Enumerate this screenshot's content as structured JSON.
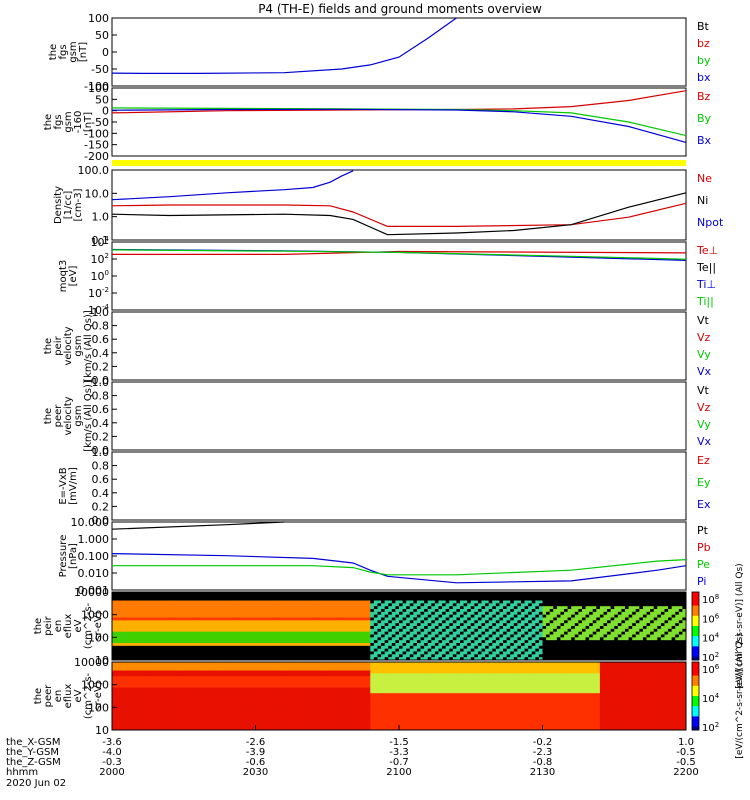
{
  "title": "P4 (TH-E) fields and ground moments overview",
  "colors": {
    "black": "#000000",
    "red": "#d40000",
    "green": "#00c800",
    "blue": "#0000d4",
    "yellow": "#ffff00"
  },
  "chart_data": [
    {
      "type": "line",
      "id": "fgs",
      "ylabel": [
        "the",
        "fgs",
        "gsm",
        "[nT]"
      ],
      "yticks": [
        "100",
        "50",
        "0",
        "-50",
        "-100"
      ],
      "ylim": [
        -100,
        100
      ],
      "legend": [
        {
          "name": "Bt",
          "color": "black"
        },
        {
          "name": "bz",
          "color": "red"
        },
        {
          "name": "by",
          "color": "green"
        },
        {
          "name": "bx",
          "color": "blue"
        }
      ],
      "series": [
        {
          "name": "bx",
          "color": "blue",
          "x": [
            0,
            0.05,
            0.15,
            0.3,
            0.4,
            0.45,
            0.5,
            0.55,
            0.6
          ],
          "y": [
            -62,
            -63,
            -63,
            -61,
            -50,
            -38,
            -15,
            40,
            110
          ]
        }
      ]
    },
    {
      "type": "line",
      "id": "fgs2",
      "ylabel": [
        "the",
        "fgs",
        "gsm",
        "-160",
        "[nT]"
      ],
      "yticks": [
        "100",
        "50",
        "0",
        "-50",
        "-100",
        "-150",
        "-200"
      ],
      "ylim": [
        -200,
        100
      ],
      "legend": [
        {
          "name": "Bz",
          "color": "red"
        },
        {
          "name": "By",
          "color": "green"
        },
        {
          "name": "Bx",
          "color": "blue"
        }
      ],
      "series": [
        {
          "name": "Bz",
          "color": "red",
          "x": [
            0,
            0.2,
            0.4,
            0.6,
            0.7,
            0.8,
            0.9,
            1.0
          ],
          "y": [
            -10,
            0,
            3,
            5,
            8,
            18,
            45,
            88
          ]
        },
        {
          "name": "By",
          "color": "green",
          "x": [
            0,
            0.2,
            0.4,
            0.6,
            0.7,
            0.8,
            0.9,
            1.0
          ],
          "y": [
            12,
            10,
            8,
            5,
            0,
            -10,
            -50,
            -110
          ]
        },
        {
          "name": "Bx",
          "color": "blue",
          "x": [
            0,
            0.2,
            0.4,
            0.6,
            0.7,
            0.8,
            0.9,
            1.0
          ],
          "y": [
            2,
            5,
            6,
            3,
            -5,
            -25,
            -70,
            -140
          ]
        }
      ]
    },
    {
      "type": "bar",
      "id": "flag"
    },
    {
      "type": "line",
      "id": "density",
      "ylabel": [
        "Density",
        "[1/cc]",
        "[cm-3]"
      ],
      "yticks": [
        "100.0",
        "10.0",
        "1.0",
        "0.1"
      ],
      "ylog": [
        0.02,
        200
      ],
      "legend": [
        {
          "name": "Ne",
          "color": "red"
        },
        {
          "name": "Ni",
          "color": "black"
        },
        {
          "name": "Npot",
          "color": "blue"
        }
      ],
      "series": [
        {
          "name": "Npot",
          "color": "blue",
          "x": [
            0,
            0.1,
            0.2,
            0.3,
            0.35,
            0.38,
            0.4,
            0.42
          ],
          "y": [
            4,
            6,
            10,
            15,
            20,
            40,
            90,
            180
          ]
        },
        {
          "name": "Ne",
          "color": "red",
          "x": [
            0,
            0.1,
            0.3,
            0.38,
            0.42,
            0.48,
            0.6,
            0.8,
            0.9,
            1.0
          ],
          "y": [
            1.8,
            2,
            2,
            1.8,
            0.8,
            0.12,
            0.12,
            0.15,
            0.4,
            2.5
          ]
        },
        {
          "name": "Ni",
          "color": "black",
          "x": [
            0,
            0.1,
            0.3,
            0.38,
            0.42,
            0.48,
            0.6,
            0.7,
            0.8,
            0.9,
            1.0
          ],
          "y": [
            0.6,
            0.5,
            0.6,
            0.5,
            0.3,
            0.04,
            0.05,
            0.07,
            0.15,
            1.5,
            10
          ]
        }
      ]
    },
    {
      "type": "line",
      "id": "temp",
      "ylabel": [
        "moqt3",
        "[eV]"
      ],
      "yticks": [
        "10",
        "10",
        "10",
        "10",
        "10"
      ],
      "yexp": [
        "4",
        "2",
        "0",
        "-2",
        "-4"
      ],
      "ylog": [
        1e-05,
        100000.0
      ],
      "legend": [
        {
          "name": "Te⊥",
          "color": "red"
        },
        {
          "name": "Te||",
          "color": "black"
        },
        {
          "name": "Ti⊥",
          "color": "blue"
        },
        {
          "name": "Ti||",
          "color": "green"
        }
      ],
      "series": [
        {
          "name": "Te",
          "color": "red",
          "x": [
            0,
            0.3,
            0.5,
            1.0
          ],
          "y": [
            1500,
            1500,
            4000,
            2500
          ]
        },
        {
          "name": "Ti",
          "color": "blue",
          "x": [
            0,
            0.3,
            0.5,
            0.8,
            1.0
          ],
          "y": [
            8000,
            5000,
            3000,
            600,
            200
          ]
        },
        {
          "name": "Tg",
          "color": "green",
          "x": [
            0,
            0.3,
            0.5,
            0.8,
            1.0
          ],
          "y": [
            7000,
            4500,
            3000,
            800,
            300
          ]
        }
      ]
    },
    {
      "type": "line",
      "id": "vpeir",
      "ylabel": [
        "the",
        "peir",
        "velocity",
        "gsm",
        "[km/s (All Qs)]"
      ],
      "yticks": [
        "1.0",
        "0.8",
        "0.6",
        "0.4",
        "0.2",
        "0.0"
      ],
      "ylim": [
        0,
        1
      ],
      "legend": [
        {
          "name": "Vt",
          "color": "black"
        },
        {
          "name": "Vz",
          "color": "red"
        },
        {
          "name": "Vy",
          "color": "green"
        },
        {
          "name": "Vx",
          "color": "blue"
        }
      ],
      "series": []
    },
    {
      "type": "line",
      "id": "vpeer",
      "ylabel": [
        "the",
        "peer",
        "velocity",
        "gsm",
        "[km/s (All Qs)]"
      ],
      "yticks": [
        "1.0",
        "0.8",
        "0.6",
        "0.4",
        "0.2",
        "0.0"
      ],
      "ylim": [
        0,
        1
      ],
      "legend": [
        {
          "name": "Vt",
          "color": "black"
        },
        {
          "name": "Vz",
          "color": "red"
        },
        {
          "name": "Vy",
          "color": "green"
        },
        {
          "name": "Vx",
          "color": "blue"
        }
      ],
      "series": []
    },
    {
      "type": "line",
      "id": "efield",
      "ylabel": [
        "E=-VxB",
        "[mV/m]"
      ],
      "yticks": [
        "1.0",
        "0.8",
        "0.6",
        "0.4",
        "0.2",
        "0.0"
      ],
      "ylim": [
        0,
        1
      ],
      "legend": [
        {
          "name": "Ez",
          "color": "red"
        },
        {
          "name": "Ey",
          "color": "green"
        },
        {
          "name": "Ex",
          "color": "blue"
        }
      ],
      "series": []
    },
    {
      "type": "line",
      "id": "pressure",
      "ylabel": [
        "Pressure",
        "[nPa]"
      ],
      "yticks": [
        "10.000",
        "1.000",
        "0.100",
        "0.010",
        "0.001"
      ],
      "ylog": [
        0.001,
        30
      ],
      "legend": [
        {
          "name": "Pt",
          "color": "black"
        },
        {
          "name": "Pb",
          "color": "red"
        },
        {
          "name": "Pe",
          "color": "green"
        },
        {
          "name": "Pi",
          "color": "blue"
        }
      ],
      "series": [
        {
          "name": "Pt",
          "color": "black",
          "x": [
            0,
            0.2,
            0.3
          ],
          "y": [
            10,
            20,
            35
          ]
        },
        {
          "name": "Pi",
          "color": "blue",
          "x": [
            0,
            0.2,
            0.35,
            0.42,
            0.45,
            0.48,
            0.6,
            0.8,
            0.95,
            1.0
          ],
          "y": [
            0.25,
            0.18,
            0.12,
            0.06,
            0.02,
            0.008,
            0.003,
            0.004,
            0.02,
            0.04
          ]
        },
        {
          "name": "Pe",
          "color": "green",
          "x": [
            0,
            0.2,
            0.35,
            0.42,
            0.45,
            0.48,
            0.6,
            0.8,
            0.95,
            1.0
          ],
          "y": [
            0.04,
            0.04,
            0.04,
            0.03,
            0.015,
            0.01,
            0.01,
            0.02,
            0.08,
            0.1
          ]
        }
      ]
    },
    {
      "type": "heatmap",
      "id": "peir_spec",
      "ylabel": [
        "the",
        "peir",
        "en",
        "eflux",
        "eV",
        "(cm^2-s-",
        "sr-eV)"
      ],
      "yticks": [
        "10000",
        "1000",
        "100",
        "10"
      ],
      "cbar": {
        "ticks": [
          "10",
          "10",
          "10",
          "10"
        ],
        "exp": [
          "8",
          "6",
          "4",
          "2"
        ],
        "label": "[eV/(cm^2-s-sr-eV)] (All Qs)"
      }
    },
    {
      "type": "heatmap",
      "id": "peer_spec",
      "ylabel": [
        "the",
        "peer",
        "en",
        "eflux",
        "eV",
        "(cm^2-s-",
        "sr-eV)"
      ],
      "yticks": [
        "10000",
        "1000",
        "100",
        "10"
      ],
      "cbar": {
        "ticks": [
          "10",
          "10",
          "10"
        ],
        "exp": [
          "6",
          "4",
          "2"
        ],
        "label": "[eV/(cm^2-s-sr-eV)] (All Qs)"
      }
    }
  ],
  "xaxis": {
    "row_labels": [
      "the_X-GSM",
      "the_Y-GSM",
      "the_Z-GSM",
      "hhmm",
      "2020 Jun 02"
    ],
    "ticks": [
      {
        "x": 0,
        "vals": [
          "-3.6",
          "-4.0",
          "-0.3",
          "2000"
        ]
      },
      {
        "x": 0.25,
        "vals": [
          "-2.6",
          "-3.9",
          "-0.6",
          "2030"
        ]
      },
      {
        "x": 0.5,
        "vals": [
          "-1.5",
          "-3.3",
          "-0.7",
          "2100"
        ]
      },
      {
        "x": 0.75,
        "vals": [
          "-0.2",
          "-2.3",
          "-0.8",
          "2130"
        ]
      },
      {
        "x": 1.0,
        "vals": [
          "1.0",
          "-0.5",
          "-0.5",
          "2200"
        ]
      }
    ]
  }
}
